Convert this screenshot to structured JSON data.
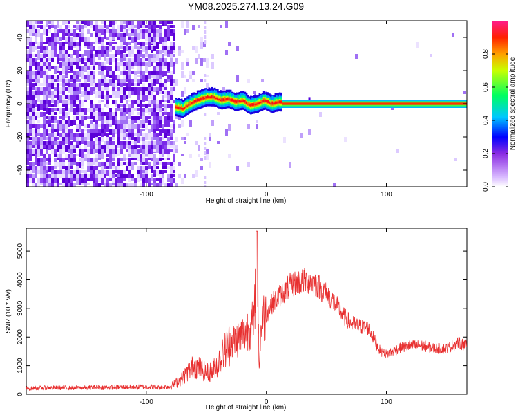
{
  "title": "YM08.2025.274.13.24.G09",
  "colorbar": {
    "label": "Normalized spectral amplitude",
    "ticks": [
      "0.0",
      "0.2",
      "0.4",
      "0.6",
      "0.8"
    ]
  },
  "chart_data": [
    {
      "type": "heatmap",
      "title": "YM08.2025.274.13.24.G09",
      "xlabel": "Height of straight line (km)",
      "ylabel": "Frequency (Hz)",
      "xlim": [
        -200,
        167
      ],
      "ylim": [
        -50,
        50
      ],
      "xticks": [
        "-100",
        "0",
        "100"
      ],
      "yticks": [
        "40",
        "20",
        "0",
        "-20",
        "-40"
      ],
      "colorbar_range": [
        0,
        1
      ],
      "ridge": {
        "x": [
          -76,
          -70,
          -64,
          -58,
          -50,
          -44,
          -38,
          -32,
          -26,
          -20,
          -14,
          -8,
          -2,
          4,
          10,
          20,
          40,
          80,
          120,
          167
        ],
        "y": [
          -2,
          -3,
          0,
          2,
          4,
          4,
          2,
          3,
          1,
          2,
          -1,
          0,
          2,
          0,
          1,
          0,
          0,
          0,
          0,
          0
        ]
      }
    },
    {
      "type": "line",
      "xlabel": "Height of straight line (km)",
      "ylabel": "SNR (10 * v/v)",
      "xlim": [
        -200,
        167
      ],
      "ylim": [
        0,
        5800
      ],
      "xticks": [
        "-100",
        "0",
        "100"
      ],
      "yticks": [
        "0",
        "1000",
        "2000",
        "3000",
        "4000",
        "5000"
      ],
      "series": [
        {
          "color": "#e83030",
          "x": [
            -200,
            -180,
            -160,
            -140,
            -120,
            -100,
            -90,
            -80,
            -75,
            -70,
            -65,
            -60,
            -55,
            -50,
            -45,
            -40,
            -35,
            -30,
            -25,
            -20,
            -15,
            -10,
            -8,
            -6,
            -4,
            0,
            5,
            10,
            15,
            20,
            25,
            30,
            35,
            40,
            45,
            50,
            55,
            60,
            65,
            70,
            75,
            80,
            85,
            90,
            95,
            100,
            110,
            120,
            130,
            140,
            150,
            160,
            167
          ],
          "y": [
            200,
            230,
            220,
            240,
            250,
            260,
            240,
            270,
            400,
            550,
            800,
            1000,
            900,
            750,
            800,
            1100,
            1500,
            1800,
            1900,
            2100,
            2300,
            2500,
            5700,
            1000,
            2600,
            2800,
            3200,
            3400,
            3600,
            3800,
            3900,
            3950,
            3950,
            3900,
            3700,
            3500,
            3300,
            3000,
            2700,
            2500,
            2400,
            2350,
            2300,
            1900,
            1500,
            1400,
            1600,
            1700,
            1700,
            1600,
            1600,
            1800,
            1700
          ]
        }
      ]
    }
  ]
}
